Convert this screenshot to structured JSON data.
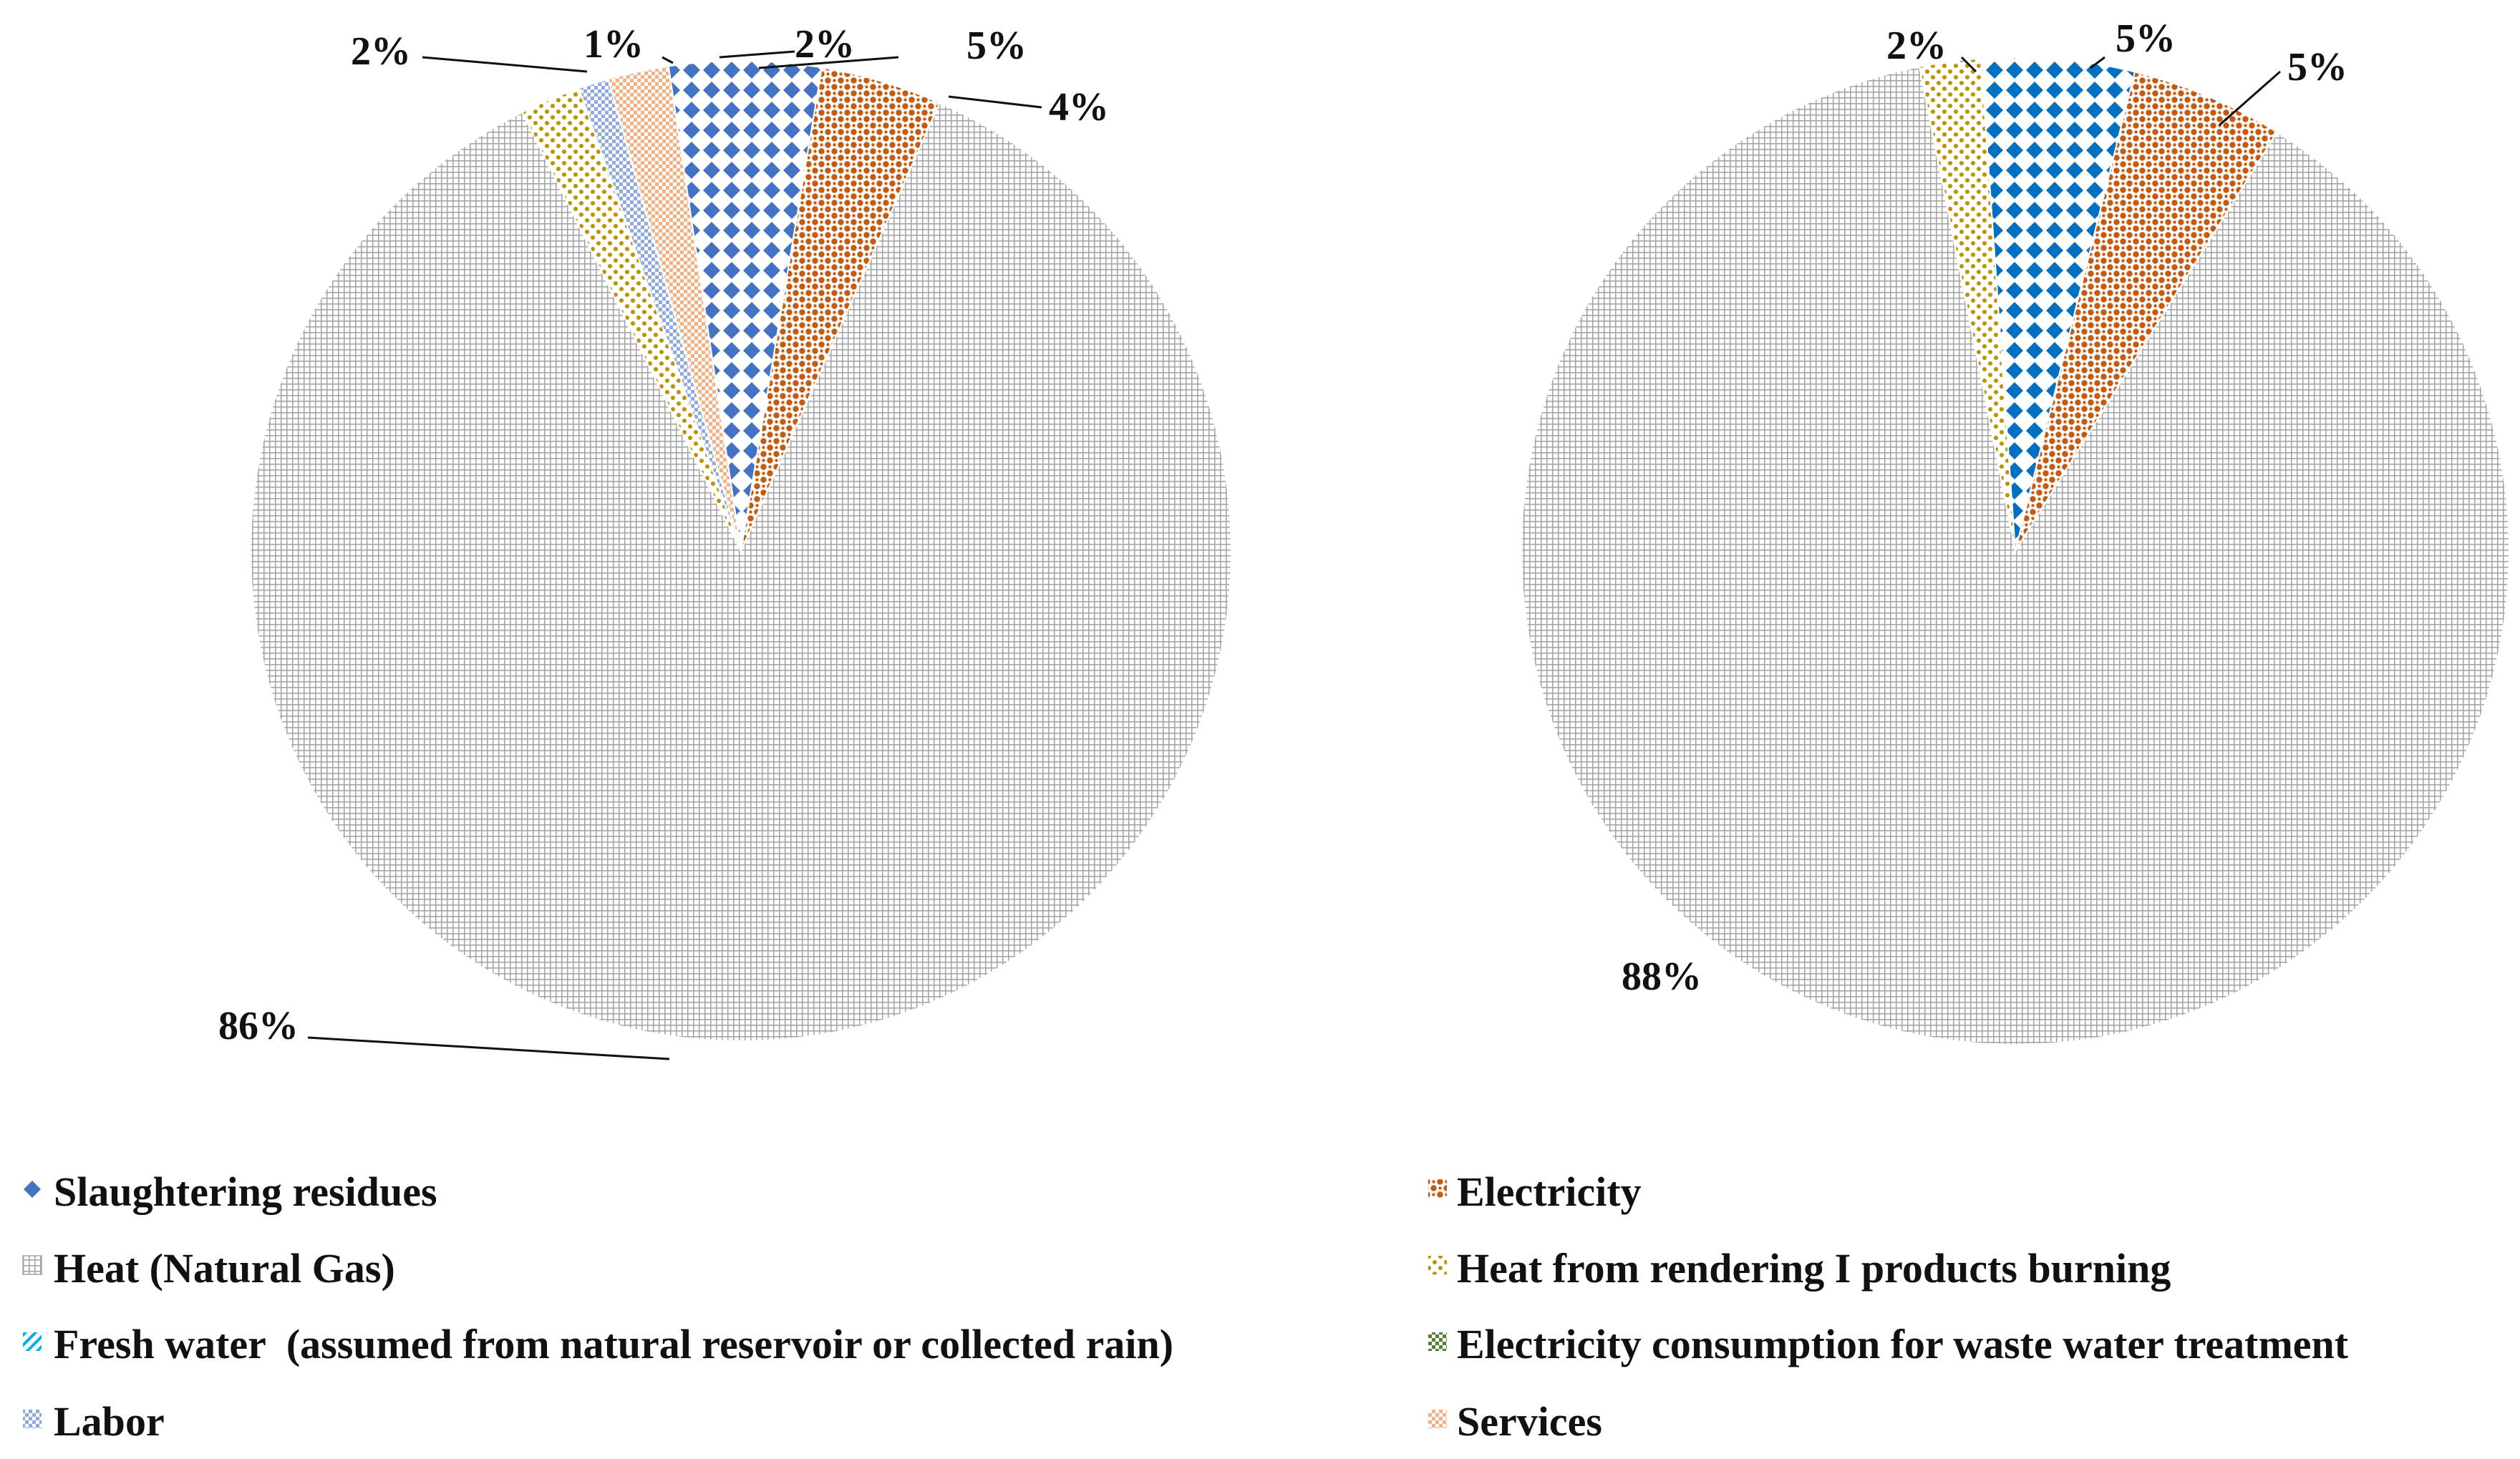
{
  "chart_data": [
    {
      "type": "pie",
      "title": "",
      "slices": [
        {
          "label": "Slaughtering residues",
          "value": 5,
          "pattern": "diamond-blue",
          "data_label": "5%"
        },
        {
          "label": "Electricity",
          "value": 4,
          "pattern": "dots-orange",
          "data_label": "4%"
        },
        {
          "label": "Heat (Natural Gas)",
          "value": 86,
          "pattern": "grid-gray",
          "data_label": "86%"
        },
        {
          "label": "Heat from rendering I products burning",
          "value": 2,
          "pattern": "dots-gold",
          "data_label": "2%"
        },
        {
          "label": "Labor",
          "value": 1,
          "pattern": "check-lightblue",
          "data_label": "1%"
        },
        {
          "label": "Services",
          "value": 2,
          "pattern": "check-peach",
          "data_label": "2%"
        }
      ]
    },
    {
      "type": "pie",
      "title": "",
      "slices": [
        {
          "label": "Slaughtering residues",
          "value": 5,
          "pattern": "diamond-teal",
          "data_label": "5%"
        },
        {
          "label": "Electricity",
          "value": 5,
          "pattern": "dots-orange",
          "data_label": "5%"
        },
        {
          "label": "Heat (Natural Gas)",
          "value": 88,
          "pattern": "grid-gray",
          "data_label": "88%"
        },
        {
          "label": "Heat from rendering I products burning",
          "value": 2,
          "pattern": "dots-gold",
          "data_label": "2%"
        }
      ]
    }
  ],
  "legend": {
    "position": "bottom",
    "items": [
      {
        "label": "Slaughtering residues",
        "pattern": "diamond-blue",
        "icon": "diamond-icon"
      },
      {
        "label": "Electricity",
        "pattern": "dots-orange",
        "icon": "dotted-square-icon"
      },
      {
        "label": "Heat (Natural Gas)",
        "pattern": "grid-gray",
        "icon": "grid-icon"
      },
      {
        "label": "Heat from rendering I products burning",
        "pattern": "dots-gold",
        "icon": "dotted-square-icon"
      },
      {
        "label": "Fresh water  (assumed from natural reservoir or collected rain)",
        "pattern": "stripe-cyan",
        "icon": "striped-square-icon"
      },
      {
        "label": "Electricity consumption for waste water treatment",
        "pattern": "check-green",
        "icon": "checker-icon"
      },
      {
        "label": "Labor",
        "pattern": "check-lightblue",
        "icon": "checker-icon"
      },
      {
        "label": "Services",
        "pattern": "check-peach",
        "icon": "checker-icon"
      }
    ]
  },
  "colors": {
    "diamond-blue": "#4472c4",
    "diamond-teal": "#0070c0",
    "dots-orange": "#c55a11",
    "grid-gray": "#a6a6a6",
    "dots-gold": "#bf9000",
    "stripe-cyan": "#00b0f0",
    "check-green": "#548235",
    "check-lightblue": "#8faadc",
    "check-peach": "#f4b183"
  }
}
